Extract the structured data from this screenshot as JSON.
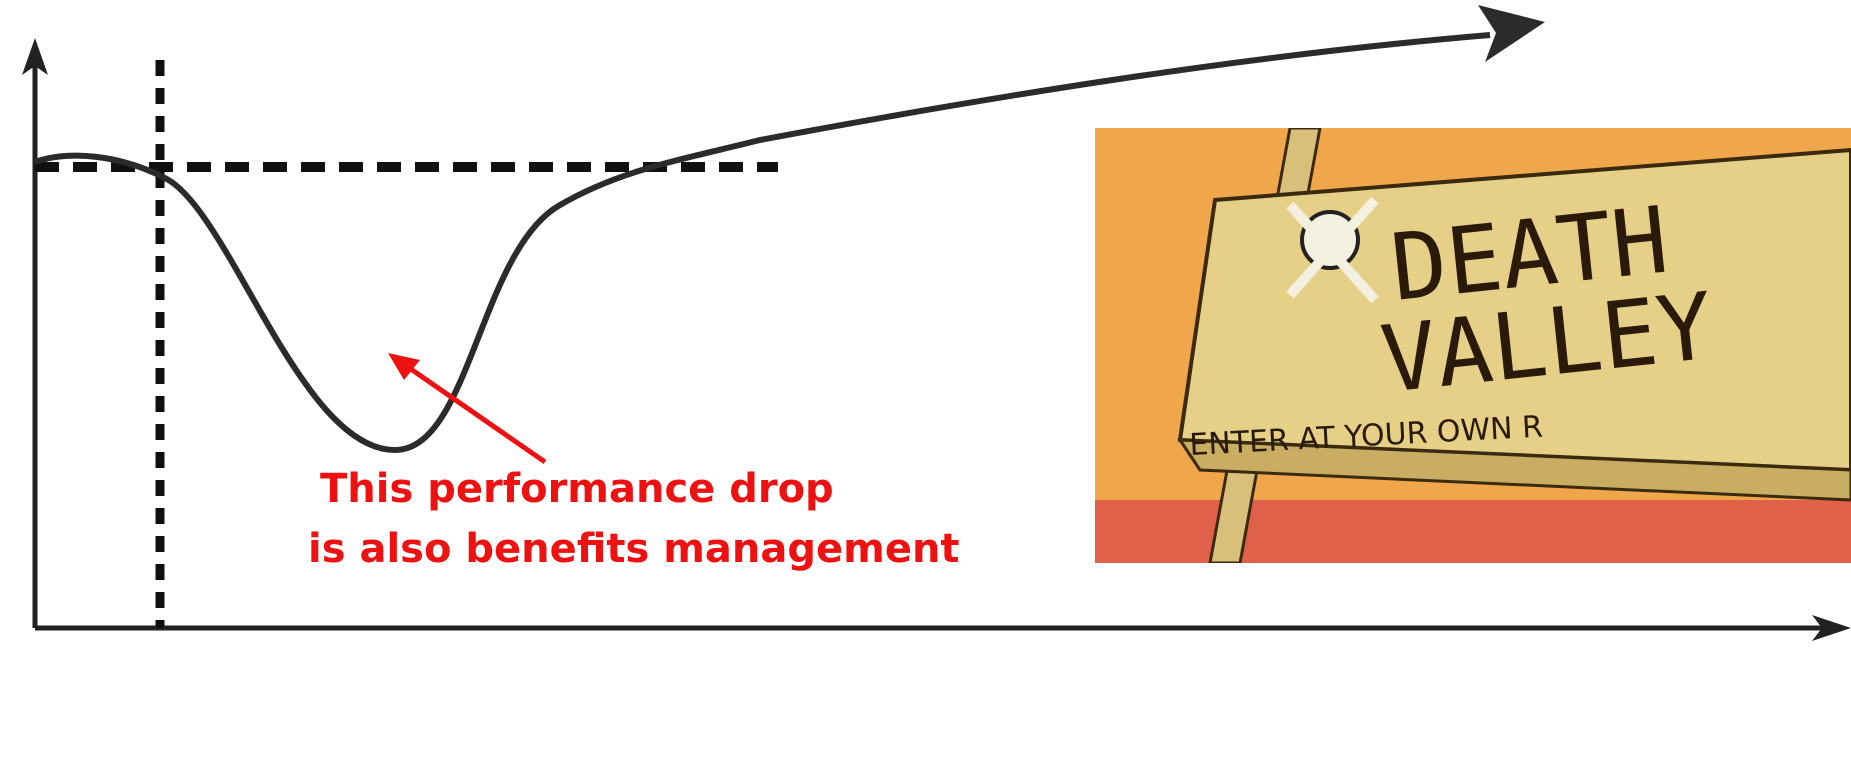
{
  "annotation": {
    "lines": [
      "This performance drop",
      "is also benefits management"
    ]
  },
  "sign": {
    "title": [
      "DEATH",
      "VALLEY"
    ],
    "subtitle": "ENTER AT YOUR OWN R"
  }
}
